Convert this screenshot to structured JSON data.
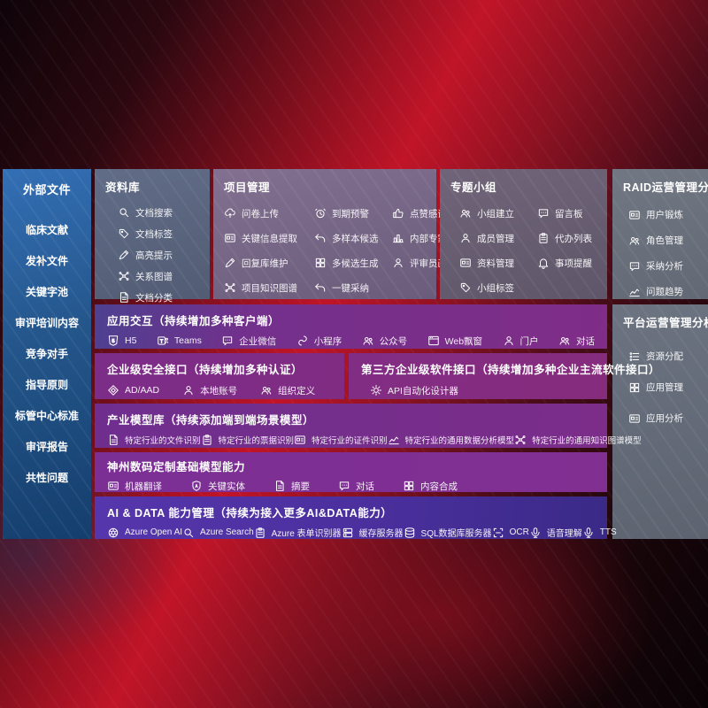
{
  "colors": {
    "background_red": "#c11428",
    "sidebar_blue": "#2a5f9e",
    "panel_gray": "#6a7280",
    "panel_mauve": "#756383",
    "band_purple": "#7d2d88",
    "band_indigo": "#4a2f9d"
  },
  "sidebar": {
    "title": "外部文件",
    "items": [
      {
        "label": "临床文献"
      },
      {
        "label": "发补文件"
      },
      {
        "label": "关键字池"
      },
      {
        "label": "审评培训内容"
      },
      {
        "label": "竞争对手"
      },
      {
        "label": "指导原则"
      },
      {
        "label": "标管中心标准"
      },
      {
        "label": "审评报告"
      },
      {
        "label": "共性问题"
      }
    ]
  },
  "panels": {
    "library": {
      "title": "资料库",
      "items": [
        {
          "label": "文档搜索",
          "icon": "search"
        },
        {
          "label": "文档标签",
          "icon": "tag"
        },
        {
          "label": "高亮提示",
          "icon": "pencil"
        },
        {
          "label": "关系图谱",
          "icon": "graph"
        },
        {
          "label": "文档分类",
          "icon": "doc"
        }
      ]
    },
    "project": {
      "title": "项目管理",
      "items": [
        {
          "label": "问卷上传",
          "icon": "cloud"
        },
        {
          "label": "到期预警",
          "icon": "alarm"
        },
        {
          "label": "点赞感谢",
          "icon": "thumb"
        },
        {
          "label": "关键信息提取",
          "icon": "card"
        },
        {
          "label": "多样本候选",
          "icon": "reply"
        },
        {
          "label": "内部专家排名",
          "icon": "podium"
        },
        {
          "label": "回复库维护",
          "icon": "pencil"
        },
        {
          "label": "多候选生成",
          "icon": "grid"
        },
        {
          "label": "评审员画像",
          "icon": "person"
        },
        {
          "label": "项目知识图谱",
          "icon": "graph"
        },
        {
          "label": "一键采纳",
          "icon": "reply"
        }
      ]
    },
    "groups": {
      "title": "专题小组",
      "items": [
        {
          "label": "小组建立",
          "icon": "people"
        },
        {
          "label": "留言板",
          "icon": "chat"
        },
        {
          "label": "成员管理",
          "icon": "person"
        },
        {
          "label": "代办列表",
          "icon": "clipboard"
        },
        {
          "label": "资料管理",
          "icon": "card"
        },
        {
          "label": "事项提醒",
          "icon": "bell"
        },
        {
          "label": "小组标签",
          "icon": "tag"
        }
      ]
    },
    "raid": {
      "title": "RAID运营管理分析",
      "items": [
        {
          "label": "用户锻炼",
          "icon": "card"
        },
        {
          "label": "角色管理",
          "icon": "people"
        },
        {
          "label": "采纳分析",
          "icon": "chat"
        },
        {
          "label": "问题趋势",
          "icon": "chart"
        }
      ]
    },
    "platform": {
      "title": "平台运营管理分析",
      "items": [
        {
          "label": "资源分配",
          "icon": "list"
        },
        {
          "label": "应用管理",
          "icon": "grid"
        },
        {
          "label": "应用分析",
          "icon": "card"
        }
      ]
    }
  },
  "bands": {
    "interaction": {
      "title": "应用交互（持续增加多种客户端）",
      "items": [
        {
          "label": "H5",
          "icon": "h5"
        },
        {
          "label": "Teams",
          "icon": "teams"
        },
        {
          "label": "企业微信",
          "icon": "chat"
        },
        {
          "label": "小程序",
          "icon": "mini"
        },
        {
          "label": "公众号",
          "icon": "people"
        },
        {
          "label": "Web飘窗",
          "icon": "window"
        },
        {
          "label": "门户",
          "icon": "person"
        },
        {
          "label": "对话",
          "icon": "people"
        }
      ]
    },
    "security": {
      "title": "企业级安全接口（持续增加多种认证）",
      "items": [
        {
          "label": "AD/AAD",
          "icon": "diamond"
        },
        {
          "label": "本地账号",
          "icon": "person"
        },
        {
          "label": "组织定义",
          "icon": "people"
        }
      ]
    },
    "thirdparty": {
      "title": "第三方企业级软件接口（持续增加多种企业主流软件接口）",
      "items": [
        {
          "label": "API自动化设计器",
          "icon": "gear"
        }
      ]
    },
    "models": {
      "title": "产业模型库（持续添加端到端场景模型）",
      "items": [
        {
          "label": "特定行业的文件识别",
          "icon": "doc"
        },
        {
          "label": "特定行业的票据识别",
          "icon": "clipboard"
        },
        {
          "label": "特定行业的证件识别",
          "icon": "card"
        },
        {
          "label": "特定行业的通用数据分析模型",
          "icon": "chart"
        },
        {
          "label": "特定行业的通用知识图谱模型",
          "icon": "graph"
        }
      ]
    },
    "foundation": {
      "title": "神州数码定制基础模型能力",
      "items": [
        {
          "label": "机器翻译",
          "icon": "card"
        },
        {
          "label": "关键实体",
          "icon": "shield"
        },
        {
          "label": "摘要",
          "icon": "doc"
        },
        {
          "label": "对话",
          "icon": "chat"
        },
        {
          "label": "内容合成",
          "icon": "grid"
        }
      ]
    },
    "aidata": {
      "title": "AI & DATA 能力管理（持续为接入更多AI&DATA能力）",
      "items": [
        {
          "label": "Azure Open AI",
          "icon": "swirl"
        },
        {
          "label": "Azure Search",
          "icon": "search"
        },
        {
          "label": "Azure 表单识别器",
          "icon": "clipboard"
        },
        {
          "label": "缓存服务器",
          "icon": "server"
        },
        {
          "label": "SQL数据库服务器",
          "icon": "db"
        },
        {
          "label": "OCR",
          "icon": "ocr"
        },
        {
          "label": "语音理解",
          "icon": "mic"
        },
        {
          "label": "TTS",
          "icon": "mic"
        }
      ]
    }
  }
}
